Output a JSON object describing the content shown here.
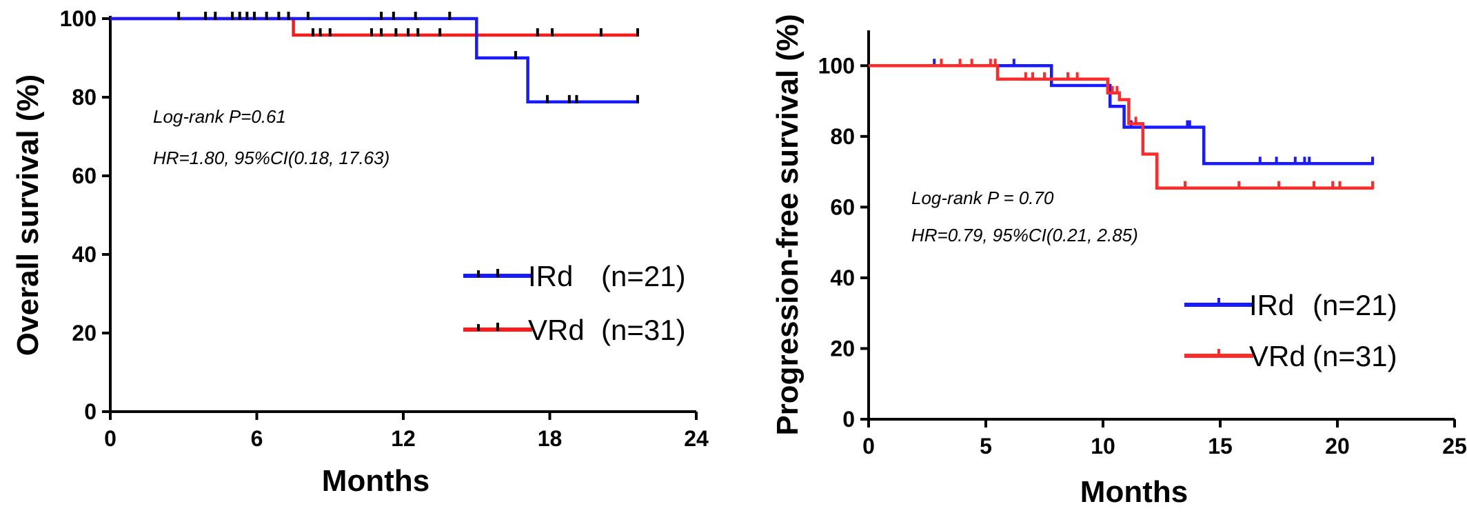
{
  "chart_data": [
    {
      "type": "line",
      "subtype": "kaplan-meier",
      "xlabel": "Months",
      "ylabel": "Overall survival (%)",
      "xlim": [
        0,
        24
      ],
      "ylim": [
        0,
        100
      ],
      "xticks": [
        0,
        6,
        12,
        18,
        24
      ],
      "yticks": [
        0,
        20,
        40,
        60,
        80,
        100
      ],
      "annotations": [
        "Log-rank P=0.61",
        "HR=1.80, 95%CI(0.18, 17.63)"
      ],
      "legend_position": "right-middle",
      "series": [
        {
          "name": "IRd",
          "n_label": "(n=21)",
          "color": "#1a1aff",
          "steps": [
            [
              0,
              100
            ],
            [
              15.0,
              100
            ],
            [
              15.0,
              90
            ],
            [
              17.1,
              90
            ],
            [
              17.1,
              78.8
            ],
            [
              21.6,
              78.8
            ]
          ],
          "censored": [
            [
              2.8,
              100
            ],
            [
              3.9,
              100
            ],
            [
              4.3,
              100
            ],
            [
              5.0,
              100
            ],
            [
              5.3,
              100
            ],
            [
              5.6,
              100
            ],
            [
              5.9,
              100
            ],
            [
              6.4,
              100
            ],
            [
              6.9,
              100
            ],
            [
              7.3,
              100
            ],
            [
              8.1,
              100
            ],
            [
              11.1,
              100
            ],
            [
              11.6,
              100
            ],
            [
              12.5,
              100
            ],
            [
              13.9,
              100
            ],
            [
              16.6,
              90
            ],
            [
              17.9,
              78.8
            ],
            [
              18.8,
              78.8
            ],
            [
              19.1,
              78.8
            ],
            [
              21.6,
              78.8
            ]
          ]
        },
        {
          "name": "VRd",
          "n_label": "(n=31)",
          "color": "#ff1a1a",
          "steps": [
            [
              0,
              100
            ],
            [
              7.5,
              100
            ],
            [
              7.5,
              95.8
            ],
            [
              21.6,
              95.8
            ]
          ],
          "censored": [
            [
              8.3,
              95.8
            ],
            [
              8.6,
              95.8
            ],
            [
              9.0,
              95.8
            ],
            [
              10.7,
              95.8
            ],
            [
              11.1,
              95.8
            ],
            [
              11.7,
              95.8
            ],
            [
              12.2,
              95.8
            ],
            [
              12.6,
              95.8
            ],
            [
              13.5,
              95.8
            ],
            [
              17.5,
              95.8
            ],
            [
              18.1,
              95.8
            ],
            [
              20.1,
              95.8
            ],
            [
              21.6,
              95.8
            ]
          ]
        }
      ]
    },
    {
      "type": "line",
      "subtype": "kaplan-meier",
      "xlabel": "Months",
      "ylabel": "Progression-free survival (%)",
      "xlim": [
        0,
        25
      ],
      "ylim": [
        0,
        110
      ],
      "xticks": [
        0,
        5,
        10,
        15,
        20,
        25
      ],
      "yticks": [
        0,
        20,
        40,
        60,
        80,
        100
      ],
      "annotations": [
        "Log-rank P = 0.70",
        "HR=0.79, 95%CI(0.21, 2.85)"
      ],
      "legend_position": "right-middle",
      "series": [
        {
          "name": "IRd",
          "n_label": "(n=21)",
          "color": "#1a1aff",
          "steps": [
            [
              0,
              100
            ],
            [
              7.8,
              100
            ],
            [
              7.8,
              94.4
            ],
            [
              10.3,
              94.4
            ],
            [
              10.3,
              88.5
            ],
            [
              10.9,
              88.5
            ],
            [
              10.9,
              82.6
            ],
            [
              14.3,
              82.6
            ],
            [
              14.3,
              72.3
            ],
            [
              21.5,
              72.3
            ]
          ],
          "censored": [
            [
              2.8,
              100
            ],
            [
              6.2,
              100
            ],
            [
              11.2,
              82.6
            ],
            [
              13.6,
              82.6
            ],
            [
              13.7,
              82.6
            ],
            [
              16.7,
              72.3
            ],
            [
              17.4,
              72.3
            ],
            [
              18.2,
              72.3
            ],
            [
              18.6,
              72.3
            ],
            [
              18.8,
              72.3
            ],
            [
              21.5,
              72.3
            ]
          ]
        },
        {
          "name": "VRd",
          "n_label": "(n=31)",
          "color": "#ff2a2a",
          "steps": [
            [
              0,
              100
            ],
            [
              5.5,
              100
            ],
            [
              5.5,
              96.2
            ],
            [
              10.2,
              96.2
            ],
            [
              10.2,
              92.3
            ],
            [
              10.7,
              92.3
            ],
            [
              10.7,
              90.4
            ],
            [
              11.1,
              90.4
            ],
            [
              11.1,
              83.6
            ],
            [
              11.7,
              83.6
            ],
            [
              11.7,
              75.0
            ],
            [
              12.3,
              75.0
            ],
            [
              12.3,
              65.4
            ],
            [
              21.5,
              65.4
            ]
          ],
          "censored": [
            [
              3.1,
              100
            ],
            [
              3.9,
              100
            ],
            [
              4.4,
              100
            ],
            [
              5.2,
              100
            ],
            [
              5.4,
              100
            ],
            [
              6.7,
              96.2
            ],
            [
              7.0,
              96.2
            ],
            [
              7.5,
              96.2
            ],
            [
              8.5,
              96.2
            ],
            [
              8.9,
              96.2
            ],
            [
              10.4,
              92.3
            ],
            [
              10.6,
              92.3
            ],
            [
              11.4,
              83.6
            ],
            [
              13.5,
              65.4
            ],
            [
              15.8,
              65.4
            ],
            [
              17.5,
              65.4
            ],
            [
              19.0,
              65.4
            ],
            [
              19.8,
              65.4
            ],
            [
              20.1,
              65.4
            ],
            [
              21.5,
              65.4
            ]
          ]
        }
      ]
    }
  ]
}
